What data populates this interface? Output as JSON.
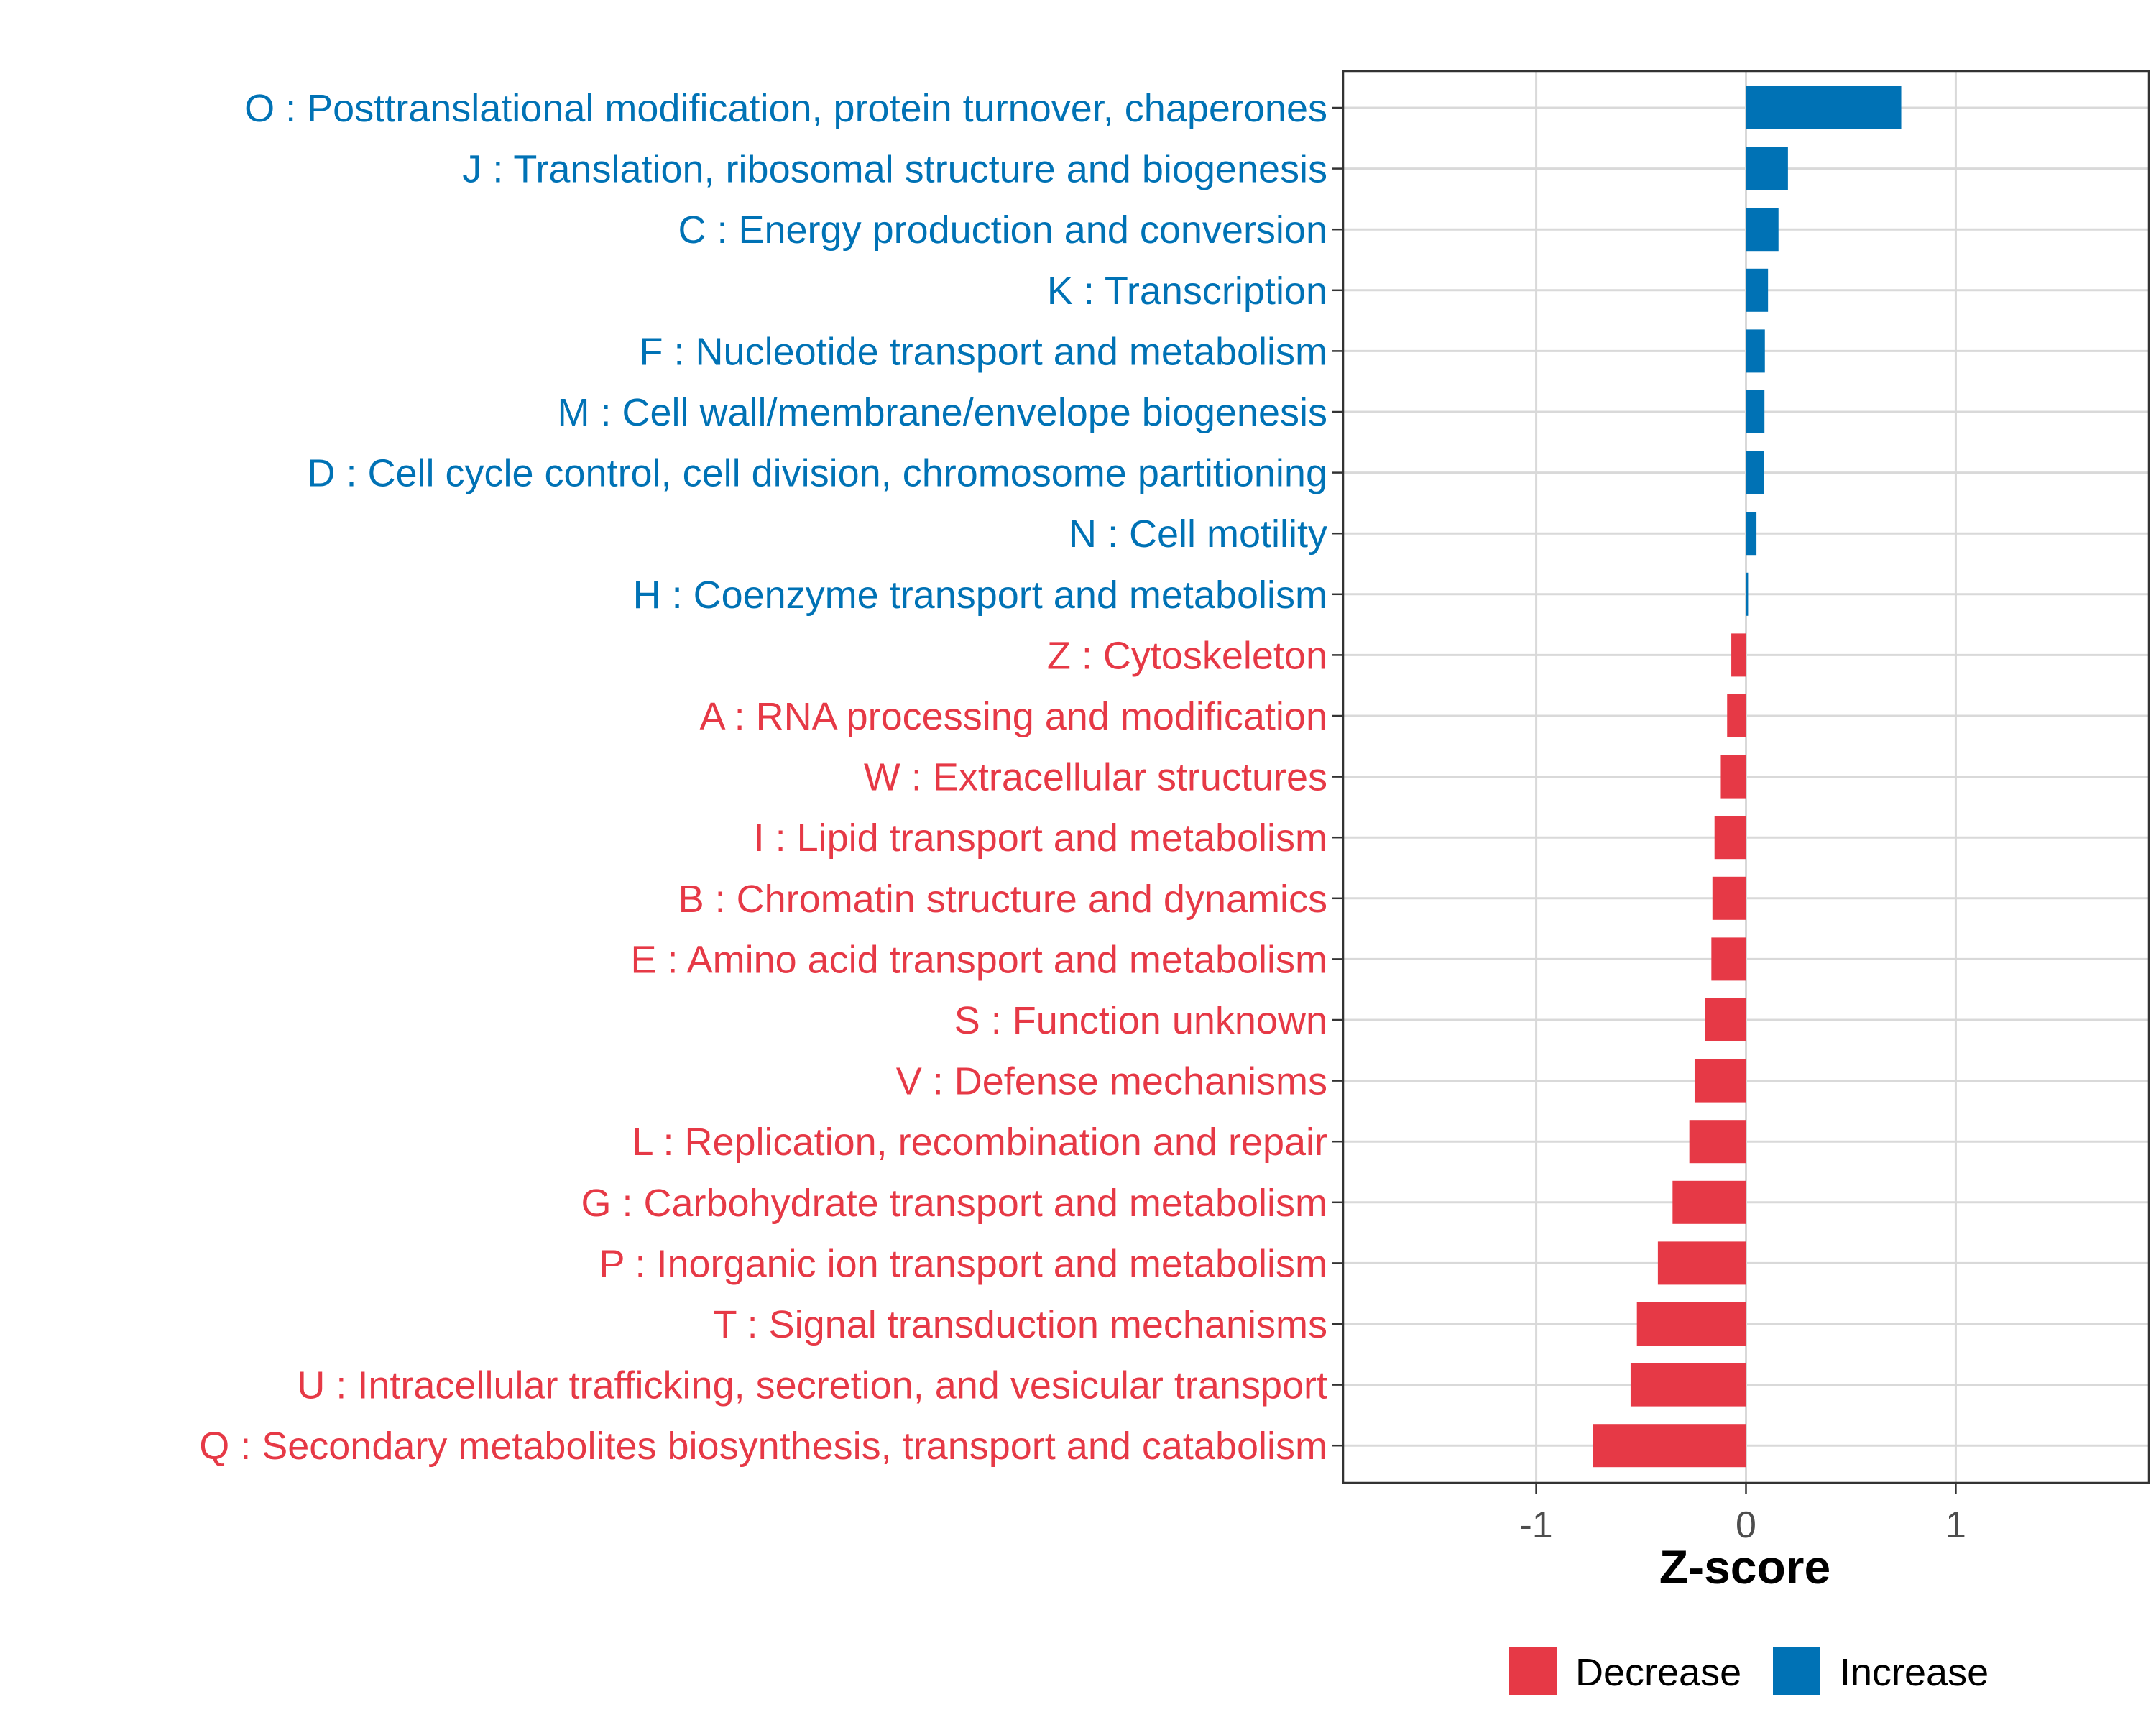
{
  "chart_data": {
    "type": "bar",
    "orientation": "horizontal",
    "title": "",
    "xlabel": "Z-score",
    "ylabel": "",
    "xlim": [
      -1.92,
      1.92
    ],
    "xticks": [
      -1,
      0,
      1
    ],
    "xtick_labels": [
      "-1",
      "0",
      "1"
    ],
    "grid": true,
    "categories": [
      "O : Posttranslational modification, protein turnover, chaperones",
      "J : Translation, ribosomal structure and biogenesis",
      "C : Energy production and conversion",
      "K : Transcription",
      "F : Nucleotide transport and metabolism",
      "M : Cell wall/membrane/envelope biogenesis",
      "D : Cell cycle control, cell division, chromosome partitioning",
      "N : Cell motility",
      "H : Coenzyme transport and metabolism",
      "Z : Cytoskeleton",
      "A : RNA processing and modification",
      "W : Extracellular structures",
      "I : Lipid transport and metabolism",
      "B : Chromatin structure and dynamics",
      "E : Amino acid transport and metabolism",
      "S : Function unknown",
      "V : Defense mechanisms",
      "L : Replication, recombination and repair",
      "G : Carbohydrate transport and metabolism",
      "P : Inorganic ion transport and metabolism",
      "T : Signal transduction mechanisms",
      "U : Intracellular trafficking, secretion, and vesicular transport",
      "Q : Secondary metabolites biosynthesis, transport and catabolism"
    ],
    "values": [
      0.74,
      0.2,
      0.155,
      0.105,
      0.09,
      0.088,
      0.085,
      0.05,
      0.01,
      -0.07,
      -0.09,
      -0.12,
      -0.15,
      -0.16,
      -0.165,
      -0.195,
      -0.245,
      -0.27,
      -0.35,
      -0.42,
      -0.52,
      -0.55,
      -0.73
    ],
    "groups": [
      "Increase",
      "Increase",
      "Increase",
      "Increase",
      "Increase",
      "Increase",
      "Increase",
      "Increase",
      "Increase",
      "Decrease",
      "Decrease",
      "Decrease",
      "Decrease",
      "Decrease",
      "Decrease",
      "Decrease",
      "Decrease",
      "Decrease",
      "Decrease",
      "Decrease",
      "Decrease",
      "Decrease",
      "Decrease"
    ],
    "colors": {
      "Decrease": "#e63946",
      "Increase": "#0072b5"
    },
    "legend": {
      "position": "bottom",
      "entries": [
        {
          "label": "Decrease",
          "color": "#e63946"
        },
        {
          "label": "Increase",
          "color": "#0072b5"
        }
      ]
    }
  }
}
